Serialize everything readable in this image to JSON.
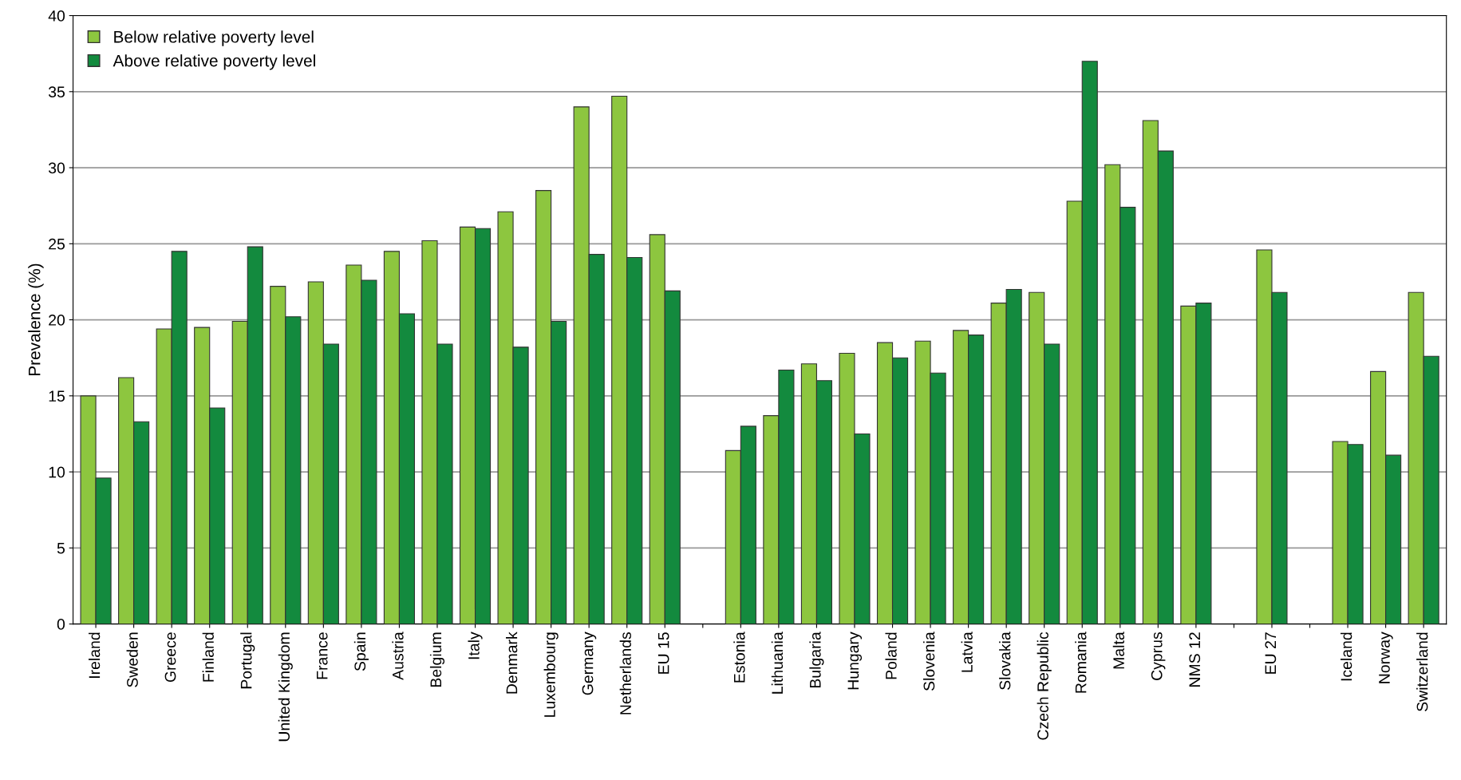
{
  "chart_data": {
    "type": "bar",
    "ylabel": "Prevalence (%)",
    "categories": [
      "Ireland",
      "Sweden",
      "Greece",
      "Finland",
      "Portugal",
      "United Kingdom",
      "France",
      "Spain",
      "Austria",
      "Belgium",
      "Italy",
      "Denmark",
      "Luxembourg",
      "Germany",
      "Netherlands",
      "EU 15",
      null,
      "Estonia",
      "Lithuania",
      "Bulgaria",
      "Hungary",
      "Poland",
      "Slovenia",
      "Latvia",
      "Slovakia",
      "Czech Republic",
      "Romania",
      "Malta",
      "Cyprus",
      "NMS 12",
      null,
      "EU 27",
      null,
      "Iceland",
      "Norway",
      "Switzerland"
    ],
    "series": [
      {
        "name": "Below relative poverty level",
        "color": "#8dc63f",
        "values": [
          15.0,
          16.2,
          19.4,
          19.5,
          19.9,
          22.2,
          22.5,
          23.6,
          24.5,
          25.2,
          26.1,
          27.1,
          28.5,
          34.0,
          34.7,
          25.6,
          null,
          11.4,
          13.7,
          17.1,
          17.8,
          18.5,
          18.6,
          19.3,
          21.1,
          21.8,
          27.8,
          30.2,
          33.1,
          20.9,
          null,
          24.6,
          null,
          12.0,
          16.6,
          21.8
        ]
      },
      {
        "name": "Above relative poverty level",
        "color": "#138a3e",
        "values": [
          9.6,
          13.3,
          24.5,
          14.2,
          24.8,
          20.2,
          18.4,
          22.6,
          20.4,
          18.4,
          26.0,
          18.2,
          19.9,
          24.3,
          24.1,
          21.9,
          null,
          13.0,
          16.7,
          16.0,
          12.5,
          17.5,
          16.5,
          19.0,
          22.0,
          18.4,
          37.0,
          27.4,
          31.1,
          21.1,
          null,
          21.8,
          null,
          11.8,
          11.1,
          17.6
        ]
      }
    ],
    "ylim": [
      0,
      40
    ],
    "yticks": [
      0,
      5,
      10,
      15,
      20,
      25,
      30,
      35,
      40
    ],
    "grid": "y",
    "legend": "top left"
  }
}
